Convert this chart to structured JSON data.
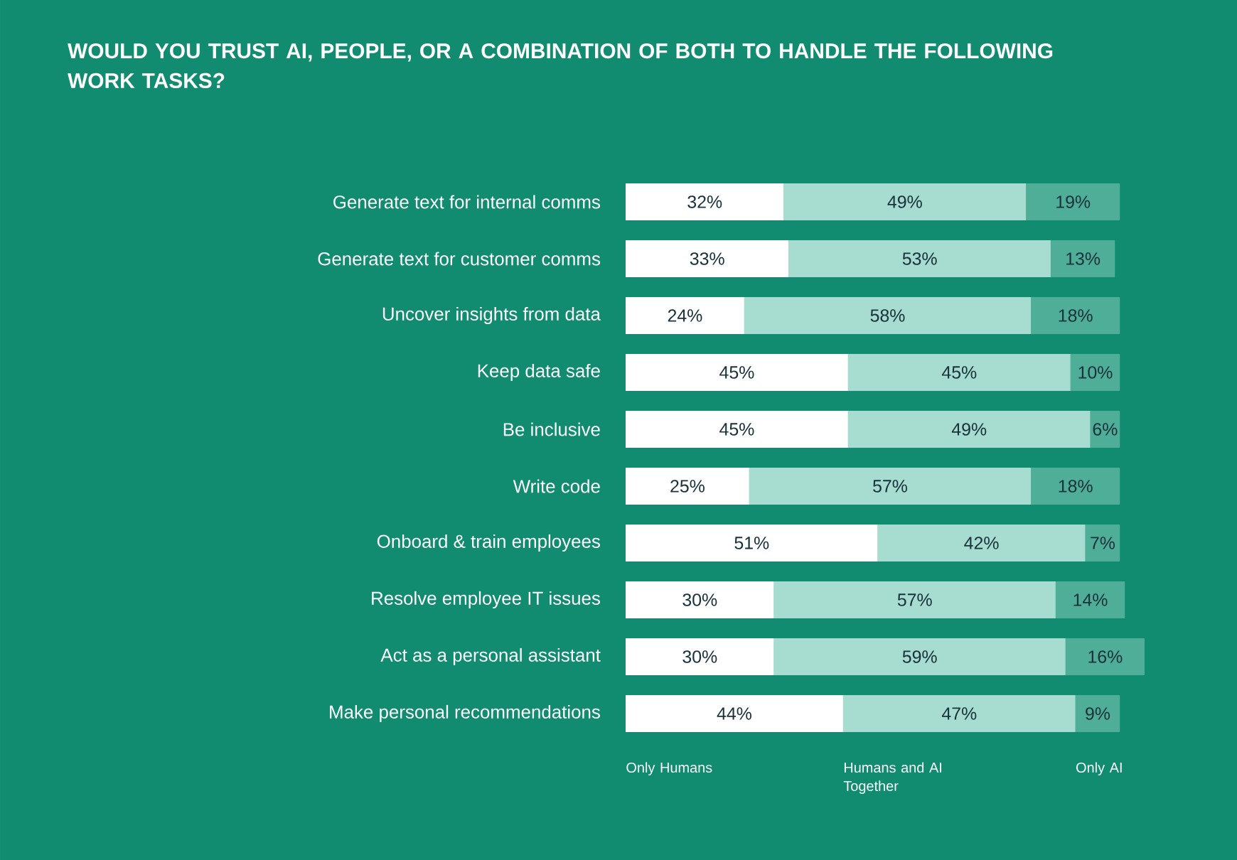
{
  "chart_data": {
    "type": "bar",
    "orientation": "horizontal",
    "stacked": true,
    "title": "WOULD YOU TRUST AI, PEOPLE, OR A COMBINATION OF BOTH TO HANDLE THE FOLLOWING WORK TASKS?",
    "categories": [
      "Generate text for internal comms",
      "Generate text for customer comms",
      "Uncover insights from data",
      "Keep data safe",
      "Be inclusive",
      "Write code",
      "Onboard & train employees",
      "Resolve employee IT issues",
      "Act as a personal assistant",
      "Make personal recommendations"
    ],
    "series": [
      {
        "name": "Only Humans",
        "color": "#ffffff",
        "values": [
          32,
          33,
          24,
          45,
          45,
          25,
          51,
          30,
          30,
          44
        ],
        "value_labels": [
          "32%",
          "33%",
          "24%",
          "45%",
          "45%",
          "25%",
          "51%",
          "30%",
          "30%",
          "44%"
        ]
      },
      {
        "name": "Humans and AI Together",
        "color": "#a6ddd0",
        "values": [
          49,
          53,
          58,
          45,
          49,
          57,
          42,
          57,
          59,
          47
        ],
        "value_labels": [
          "49%",
          "53%",
          "58%",
          "45%",
          "49%",
          "57%",
          "42%",
          "57%",
          "59%",
          "47%"
        ]
      },
      {
        "name": "Only AI",
        "color": "#4fae98",
        "values": [
          19,
          13,
          18,
          10,
          6,
          18,
          7,
          14,
          16,
          9
        ],
        "value_labels": [
          "19%",
          "13%",
          "18%",
          "10%",
          "6%",
          "18%",
          "7%",
          "14%",
          "16%",
          "9%"
        ]
      }
    ]
  }
}
